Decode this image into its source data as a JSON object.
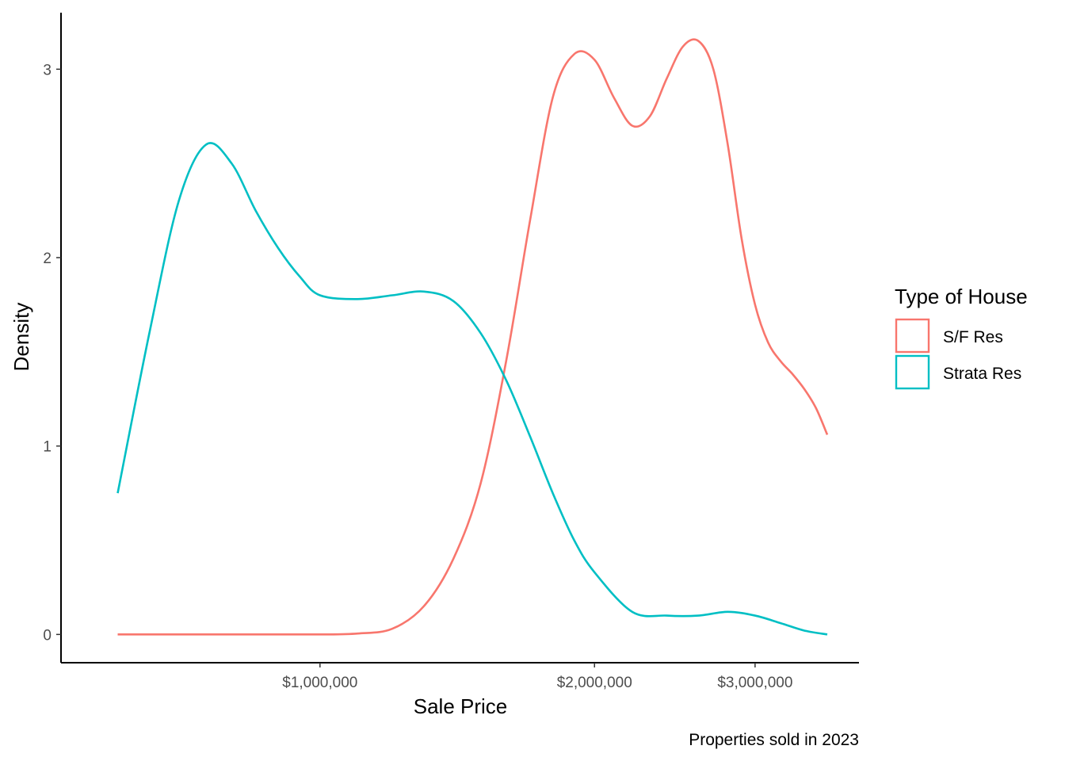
{
  "chart_data": {
    "type": "line",
    "subtype": "density",
    "xlabel": "Sale Price",
    "ylabel": "Density",
    "caption": "Properties sold in 2023",
    "x_scale": "log10",
    "xlim": [
      520000,
      3900000
    ],
    "ylim": [
      -0.15,
      3.3
    ],
    "x_ticks": [
      1000000,
      2000000,
      3000000
    ],
    "x_tick_labels": [
      "$1,000,000",
      "$2,000,000",
      "$3,000,000"
    ],
    "y_ticks": [
      0,
      1,
      2,
      3
    ],
    "y_tick_labels": [
      "0",
      "1",
      "2",
      "3"
    ],
    "grid": false,
    "legend": {
      "title": "Type of House",
      "position": "right"
    },
    "series": [
      {
        "name": "S/F Res",
        "color": "#F8766D",
        "x": [
          600000,
          800000,
          1000000,
          1100000,
          1200000,
          1300000,
          1400000,
          1500000,
          1600000,
          1700000,
          1800000,
          1900000,
          2000000,
          2100000,
          2200000,
          2300000,
          2400000,
          2500000,
          2600000,
          2700000,
          2800000,
          2900000,
          3000000,
          3100000,
          3200000,
          3300000,
          3400000,
          3500000,
          3600000
        ],
        "y": [
          0,
          0,
          0,
          0.005,
          0.03,
          0.15,
          0.4,
          0.8,
          1.45,
          2.2,
          2.85,
          3.08,
          3.05,
          2.85,
          2.7,
          2.75,
          2.95,
          3.12,
          3.15,
          3.0,
          2.6,
          2.1,
          1.75,
          1.55,
          1.45,
          1.38,
          1.3,
          1.2,
          1.06
        ]
      },
      {
        "name": "Strata Res",
        "color": "#00BFC4",
        "x": [
          600000,
          650000,
          700000,
          750000,
          800000,
          850000,
          900000,
          950000,
          1000000,
          1100000,
          1200000,
          1300000,
          1400000,
          1500000,
          1600000,
          1700000,
          1800000,
          1900000,
          2000000,
          2200000,
          2400000,
          2600000,
          2800000,
          3000000,
          3200000,
          3400000,
          3600000
        ],
        "y": [
          0.75,
          1.6,
          2.3,
          2.6,
          2.5,
          2.25,
          2.05,
          1.9,
          1.8,
          1.78,
          1.8,
          1.82,
          1.77,
          1.6,
          1.35,
          1.05,
          0.75,
          0.5,
          0.33,
          0.12,
          0.1,
          0.1,
          0.12,
          0.1,
          0.06,
          0.02,
          0.0
        ]
      }
    ]
  }
}
